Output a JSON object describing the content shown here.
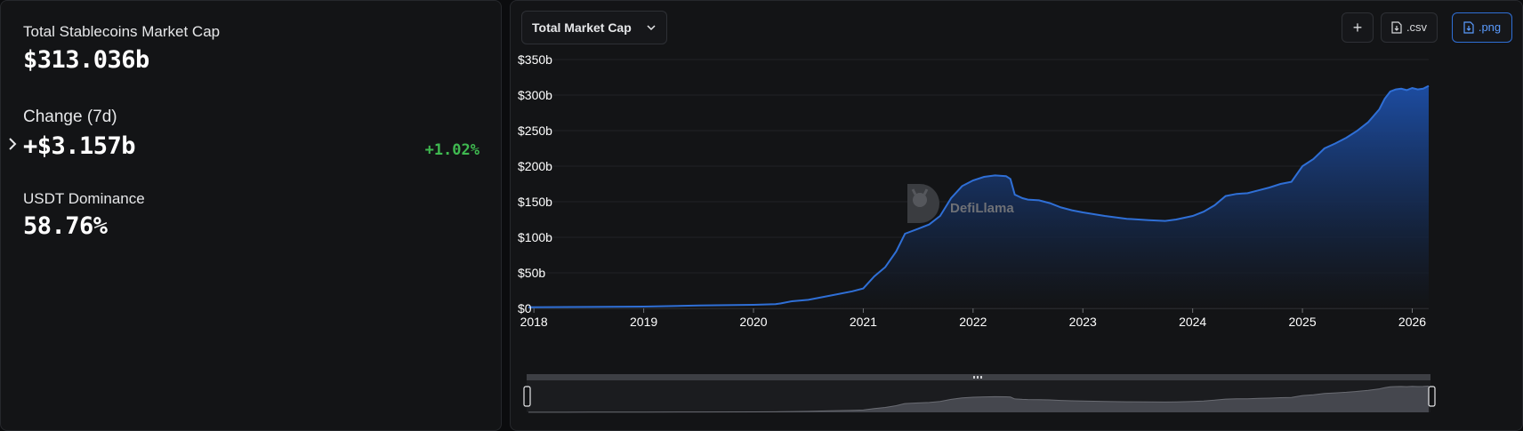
{
  "stats": {
    "total_label": "Total Stablecoins Market Cap",
    "total_value": "$313.036b",
    "change_label": "Change (7d)",
    "change_value": "+$3.157b",
    "change_pct": "+1.02%",
    "dominance_label": "USDT Dominance",
    "dominance_value": "58.76%"
  },
  "toolbar": {
    "dropdown_label": "Total Market Cap",
    "add_label": "+",
    "csv_label": ".csv",
    "png_label": ".png"
  },
  "watermark": "DefiLlama",
  "colors": {
    "line": "#2f6fd6",
    "positive": "#3fb950",
    "panel": "#131416"
  },
  "chart_data": {
    "type": "area",
    "title": "",
    "xlabel": "",
    "ylabel": "",
    "x_ticks": [
      "2018",
      "2019",
      "2020",
      "2021",
      "2022",
      "2023",
      "2024",
      "2025",
      "2026"
    ],
    "y_ticks": [
      "$0",
      "$50b",
      "$100b",
      "$150b",
      "$200b",
      "$250b",
      "$300b",
      "$350b"
    ],
    "ylim": [
      0,
      350
    ],
    "xlim": [
      2017.95,
      2026.15
    ],
    "grid": true,
    "series": [
      {
        "name": "",
        "x": [
          2017.95,
          2018.5,
          2019.0,
          2019.5,
          2020.0,
          2020.2,
          2020.25,
          2020.35,
          2020.5,
          2020.7,
          2020.9,
          2021.0,
          2021.1,
          2021.2,
          2021.3,
          2021.38,
          2021.5,
          2021.6,
          2021.7,
          2021.8,
          2021.9,
          2022.0,
          2022.1,
          2022.2,
          2022.3,
          2022.34,
          2022.38,
          2022.45,
          2022.5,
          2022.6,
          2022.7,
          2022.8,
          2022.9,
          2023.0,
          2023.2,
          2023.4,
          2023.6,
          2023.75,
          2023.85,
          2024.0,
          2024.1,
          2024.2,
          2024.3,
          2024.4,
          2024.5,
          2024.6,
          2024.7,
          2024.8,
          2024.9,
          2025.0,
          2025.1,
          2025.2,
          2025.3,
          2025.4,
          2025.5,
          2025.6,
          2025.7,
          2025.75,
          2025.8,
          2025.85,
          2025.9,
          2025.95,
          2026.0,
          2026.05,
          2026.1,
          2026.15
        ],
        "y": [
          1.5,
          2,
          2.5,
          4,
          5,
          6,
          7,
          10,
          12,
          18,
          24,
          28,
          45,
          58,
          80,
          105,
          112,
          118,
          130,
          155,
          172,
          180,
          185,
          187,
          186,
          182,
          160,
          155,
          153,
          152,
          148,
          142,
          138,
          135,
          130,
          126,
          124,
          123,
          125,
          130,
          136,
          145,
          158,
          161,
          162,
          166,
          170,
          175,
          178,
          200,
          210,
          225,
          232,
          240,
          250,
          262,
          280,
          295,
          305,
          308,
          309,
          307,
          310,
          308,
          309,
          313
        ]
      }
    ]
  }
}
